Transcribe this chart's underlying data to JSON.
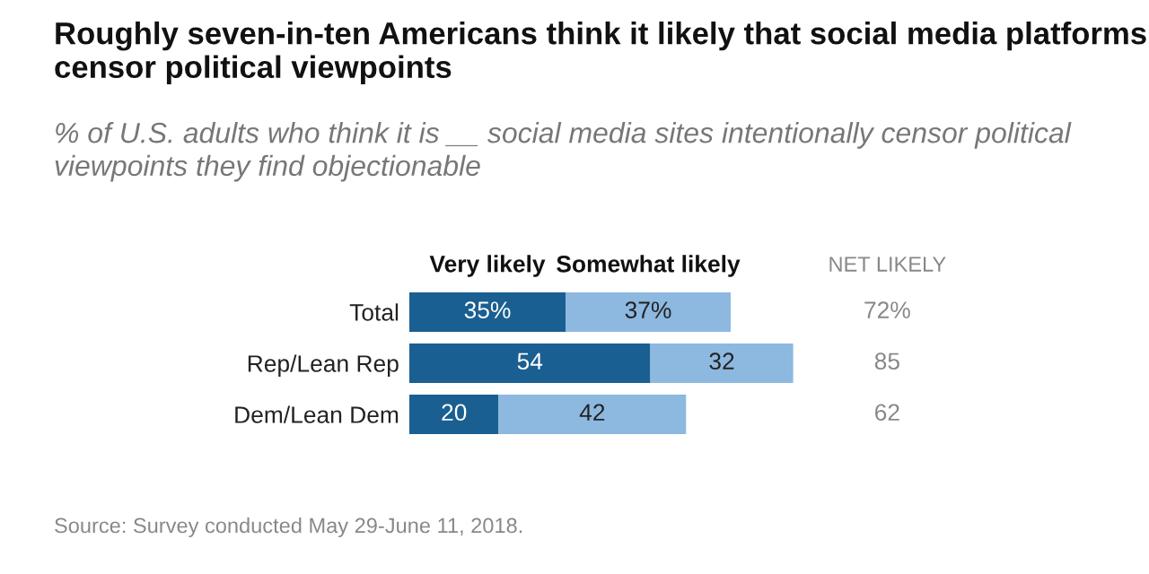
{
  "chart_data": {
    "type": "bar",
    "orientation": "horizontal",
    "stacked": true,
    "title": "Roughly seven-in-ten Americans think it likely that social media platforms censor political viewpoints",
    "subtitle": "% of U.S. adults who think it is __ social media sites intentionally censor political viewpoints they find objectionable",
    "categories": [
      "Total",
      "Rep/Lean Rep",
      "Dem/Lean Dem"
    ],
    "series": [
      {
        "name": "Very likely",
        "color": "#1a5f91",
        "values": [
          35,
          54,
          20
        ],
        "value_labels": [
          "35%",
          "54",
          "20"
        ]
      },
      {
        "name": "Somewhat likely",
        "color": "#8db8e0",
        "values": [
          37,
          32,
          42
        ],
        "value_labels": [
          "37%",
          "32",
          "42"
        ]
      }
    ],
    "legend": "top",
    "annotations": [
      "NET LIKELY",
      "72%",
      "85",
      "62",
      "Source: Survey conducted May 29-June 11, 2018."
    ]
  }
}
